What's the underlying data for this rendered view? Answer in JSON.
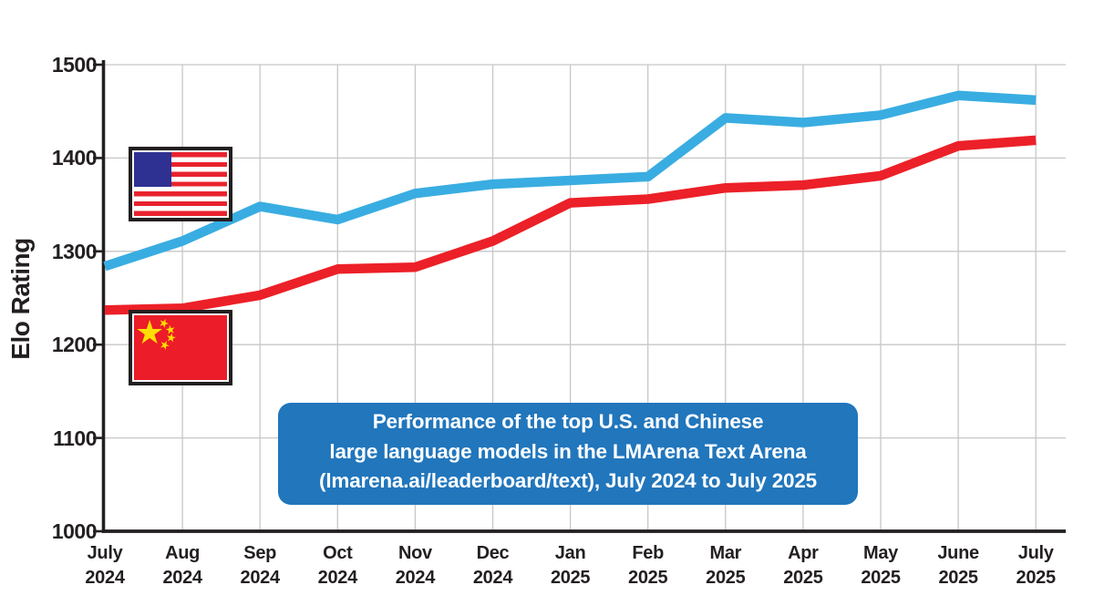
{
  "chart_data": {
    "type": "line",
    "ylabel": "Elo Rating",
    "xlabel": "",
    "ylim": [
      1000,
      1500
    ],
    "yticks": [
      1000,
      1100,
      1200,
      1300,
      1400,
      1500
    ],
    "grid": true,
    "legend_position": "on-chart-flags",
    "x_tick_labels": [
      {
        "month": "July",
        "year": "2024"
      },
      {
        "month": "Aug",
        "year": "2024"
      },
      {
        "month": "Sep",
        "year": "2024"
      },
      {
        "month": "Oct",
        "year": "2024"
      },
      {
        "month": "Nov",
        "year": "2024"
      },
      {
        "month": "Dec",
        "year": "2024"
      },
      {
        "month": "Jan",
        "year": "2025"
      },
      {
        "month": "Feb",
        "year": "2025"
      },
      {
        "month": "Mar",
        "year": "2025"
      },
      {
        "month": "Apr",
        "year": "2025"
      },
      {
        "month": "May",
        "year": "2025"
      },
      {
        "month": "June",
        "year": "2025"
      },
      {
        "month": "July",
        "year": "2025"
      }
    ],
    "series": [
      {
        "name": "Top U.S. model",
        "legend_icon": "us-flag-icon",
        "color": "#39ade1",
        "values": [
          1284,
          1311,
          1348,
          1334,
          1362,
          1372,
          1376,
          1380,
          1443,
          1438,
          1446,
          1467,
          1462
        ]
      },
      {
        "name": "Top Chinese model",
        "legend_icon": "china-flag-icon",
        "color": "#ec2028",
        "values": [
          1237,
          1239,
          1253,
          1281,
          1283,
          1311,
          1352,
          1356,
          1368,
          1371,
          1381,
          1413,
          1419
        ]
      }
    ],
    "caption_lines": [
      "Performance of the top U.S. and Chinese",
      "large language models in the LMArena Text Arena",
      "(lmarena.ai/leaderboard/text), July 2024 to July 2025"
    ]
  },
  "colors": {
    "caption_background": "#2176bc",
    "caption_text": "#ffffff",
    "axis": "#231f20",
    "gridline": "#c7c7c7",
    "us_line": "#39ade1",
    "china_line": "#ec2028",
    "us_flag_canton": "#2e3192",
    "flag_red": "#ec1c28",
    "china_star_yellow": "#ffde00"
  }
}
